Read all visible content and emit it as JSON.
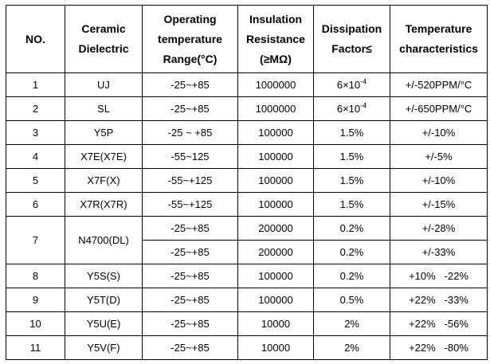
{
  "page": {
    "background_color": "#ffffff",
    "border_color": "#000000",
    "text_color": "#000000"
  },
  "header": {
    "no": [
      "NO."
    ],
    "dielectric": [
      "Ceramic",
      "Dielectric"
    ],
    "temp_range": [
      "Operating",
      "temperature",
      "Range(°C)"
    ],
    "resistance": [
      "Insulation",
      "Resistance",
      "(≥MΩ)"
    ],
    "dissipation": [
      "Dissipation",
      "Factor≤"
    ],
    "characteristics": [
      "Temperature",
      "characteristics"
    ]
  },
  "rows": [
    {
      "no": "1",
      "dielectric": "UJ",
      "temp_range": "-25~+85",
      "resistance": "1000000",
      "dissipation": "6×10",
      "dissipation_sup": "-4",
      "characteristics": "+/-520PPM/°C"
    },
    {
      "no": "2",
      "dielectric": "SL",
      "temp_range": "-25~+85",
      "resistance": "1000000",
      "dissipation": "6×10",
      "dissipation_sup": "-4",
      "characteristics": "+/-650PPM/°C"
    },
    {
      "no": "3",
      "dielectric": "Y5P",
      "temp_range": "-25 ~ +85",
      "resistance": "100000",
      "dissipation": "1.5%",
      "characteristics": "+/-10%"
    },
    {
      "no": "4",
      "dielectric": "X7E(X7E)",
      "temp_range": "-55~125",
      "resistance": "100000",
      "dissipation": "1.5%",
      "characteristics": "+/-5%"
    },
    {
      "no": "5",
      "dielectric": "X7F(X)",
      "temp_range": "-55~+125",
      "resistance": "100000",
      "dissipation": "1.5%",
      "characteristics": "+/-10%"
    },
    {
      "no": "6",
      "dielectric": "X7R(X7R)",
      "temp_range": "-55~+125",
      "resistance": "100000",
      "dissipation": "1.5%",
      "characteristics": "+/-15%"
    },
    {
      "no": "7",
      "merge_rows": 2,
      "dielectric": "N4700(DL)",
      "temp_range": "-25~+85",
      "resistance": "200000",
      "dissipation": "0.2%",
      "characteristics": "+/-28%"
    },
    {
      "temp_range": "-25~+85",
      "resistance": "200000",
      "dissipation": "0.2%",
      "characteristics": "+/-33%"
    },
    {
      "no": "8",
      "dielectric": "Y5S(S)",
      "temp_range": "-25~+85",
      "resistance": "100000",
      "dissipation": "0.2%",
      "characteristics": "+10%   -22%"
    },
    {
      "no": "9",
      "dielectric": "Y5T(D)",
      "temp_range": "-25~+85",
      "resistance": "100000",
      "dissipation": "0.5%",
      "characteristics": "+22%   -33%"
    },
    {
      "no": "10",
      "dielectric": "Y5U(E)",
      "temp_range": "-25~+85",
      "resistance": "10000",
      "dissipation": "2%",
      "characteristics": "+22%   -56%"
    },
    {
      "no": "11",
      "dielectric": "Y5V(F)",
      "temp_range": "-25~+85",
      "resistance": "10000",
      "dissipation": "2%",
      "characteristics": "+22%   -80%"
    }
  ]
}
